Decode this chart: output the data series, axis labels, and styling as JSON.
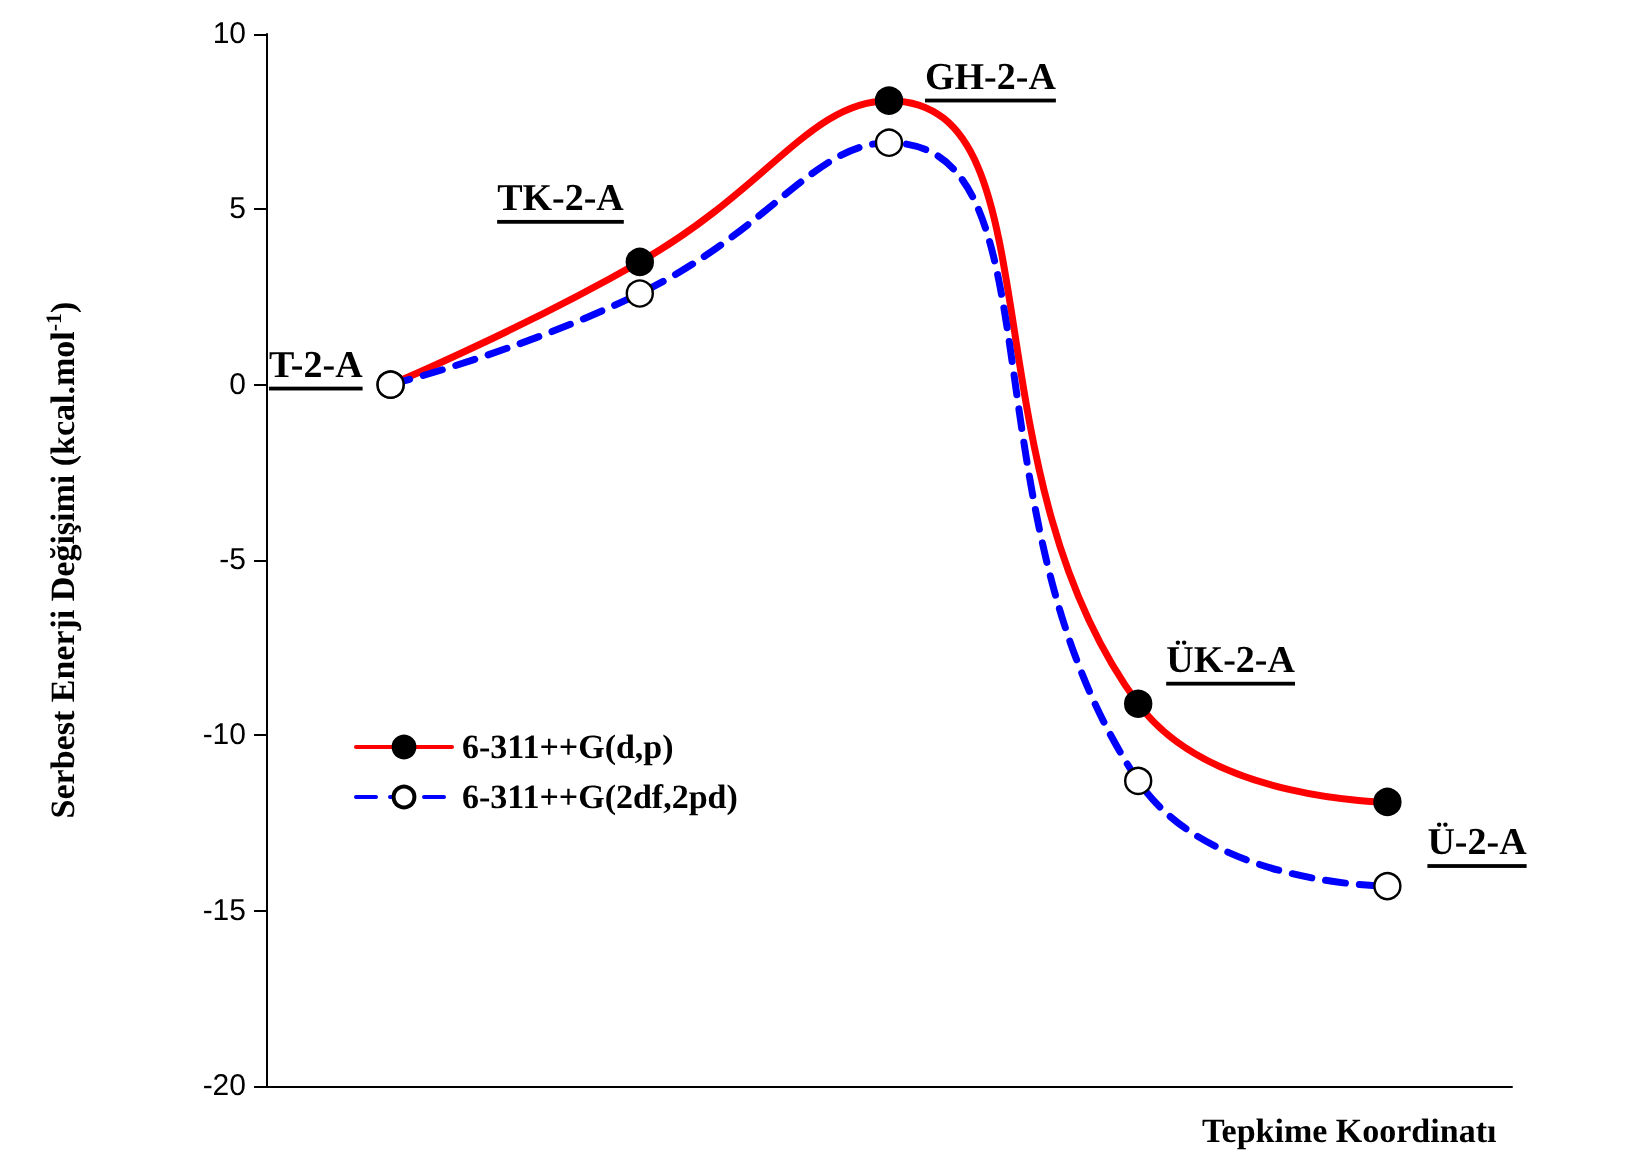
{
  "chart_data": {
    "type": "line",
    "xlabel": "Tepkime Koordinatı",
    "ylabel": "Serbest Enerji Değişimi (kcal.mol$^{-1}$)",
    "categories": [
      "T-2-A",
      "TK-2-A",
      "GH-2-A",
      "ÜK-2-A",
      "Ü-2-A"
    ],
    "series": [
      {
        "name": "6-311++G(d,p)",
        "color": "#ff0000",
        "line_style": "solid",
        "values": [
          0,
          3.5,
          8.1,
          -9.1,
          -11.9
        ]
      },
      {
        "name": "6-311++G(2df,2pd)",
        "color": "#0000ff",
        "line_style": "dashed",
        "values": [
          0,
          2.6,
          6.9,
          -11.3,
          -14.3
        ]
      }
    ],
    "ylim": [
      -20,
      10
    ],
    "yticks": [
      -20,
      -15,
      -10,
      -5,
      0,
      5,
      10
    ],
    "tick_labels": "y",
    "grid": false,
    "legend": "left",
    "marker": "circle"
  }
}
